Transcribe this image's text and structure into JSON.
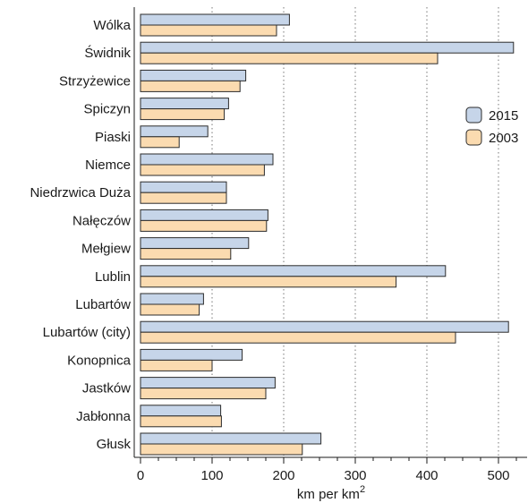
{
  "chart_data": {
    "type": "bar",
    "orientation": "horizontal",
    "categories": [
      "Wólka",
      "Świdnik",
      "Strzyżewice",
      "Spiczyn",
      "Piaski",
      "Niemce",
      "Niedrzwica Duża",
      "Nałęczów",
      "Mełgiew",
      "Lublin",
      "Lubartów",
      "Lubartów (city)",
      "Konopnica",
      "Jastków",
      "Jabłonna",
      "Głusk"
    ],
    "series": [
      {
        "name": "2015",
        "color": "#c6d5e9",
        "values": [
          208,
          521,
          147,
          123,
          94,
          185,
          120,
          178,
          151,
          426,
          88,
          514,
          142,
          188,
          112,
          252
        ]
      },
      {
        "name": "2003",
        "color": "#fbdbb0",
        "values": [
          190,
          415,
          139,
          117,
          54,
          173,
          120,
          176,
          126,
          357,
          82,
          440,
          100,
          175,
          113,
          226
        ]
      }
    ],
    "xlabel_main": "km per km",
    "xlabel_sup": "2",
    "xlim": [
      0,
      540
    ],
    "xticks": [
      0,
      100,
      200,
      300,
      400,
      500
    ],
    "grid": "vertical dotted",
    "legend_position": "right"
  }
}
